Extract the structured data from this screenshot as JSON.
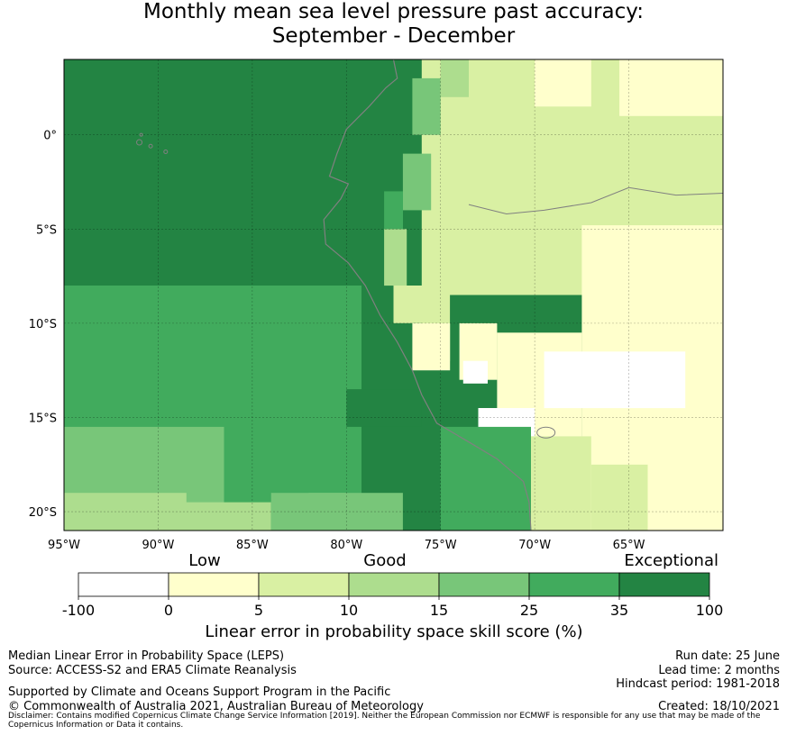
{
  "title": {
    "line1": "Monthly mean sea level pressure past accuracy:",
    "line2": "September - December"
  },
  "map": {
    "lon_range": [
      -95,
      -60
    ],
    "lat_range": [
      -21,
      4
    ],
    "lon_ticks": [
      {
        "value": -95,
        "label": "95°W"
      },
      {
        "value": -90,
        "label": "90°W"
      },
      {
        "value": -85,
        "label": "85°W"
      },
      {
        "value": -80,
        "label": "80°W"
      },
      {
        "value": -75,
        "label": "75°W"
      },
      {
        "value": -70,
        "label": "70°W"
      },
      {
        "value": -65,
        "label": "65°W"
      }
    ],
    "lat_ticks": [
      {
        "value": 0,
        "label": "0°"
      },
      {
        "value": -5,
        "label": "5°S"
      },
      {
        "value": -10,
        "label": "10°S"
      },
      {
        "value": -15,
        "label": "15°S"
      },
      {
        "value": -20,
        "label": "20°S"
      }
    ],
    "gridlines": true,
    "coastline_color": "#808080"
  },
  "colorbar": {
    "bounds": [
      "-100",
      "0",
      "5",
      "10",
      "15",
      "25",
      "35",
      "100"
    ],
    "colors": [
      "#ffffff",
      "#ffffcc",
      "#d9f0a3",
      "#addd8e",
      "#78c679",
      "#41ab5d",
      "#238443"
    ],
    "category_labels": [
      "Low",
      "Good",
      "Exceptional"
    ],
    "label": "Linear error in probability space skill score (%)"
  },
  "footer": {
    "left_line1": "Median Linear Error in Probability Space (LEPS)",
    "left_line2": "Source: ACCESS-S2 and ERA5 Climate Reanalysis",
    "support": "Supported by Climate and Oceans Support Program in the Pacific",
    "copyright": "© Commonwealth of Australia 2021, Australian Bureau of Meteorology",
    "run_date": "Run date: 25 June",
    "lead_time": "Lead time: 2 months",
    "hindcast": "Hindcast period: 1981-2018",
    "created": "Created: 18/10/2021",
    "disclaimer": "Disclaimer: Contains modified Copernicus Climate Change Service Information [2019]. Neither the European Commission nor ECMWF is responsible for any use that may be made of the Copernicus Information or Data it contains."
  }
}
